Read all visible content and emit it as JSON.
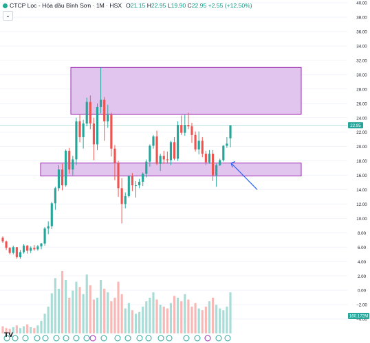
{
  "header": {
    "symbol_title": "CTCP Lọc - Hóa dầu Bình Sơn · 1M · HSX",
    "o_label": "O",
    "o_value": "21.15",
    "h_label": "H",
    "h_value": "22.95",
    "l_label": "L",
    "l_value": "19.90",
    "c_label": "C",
    "c_value": "22.95",
    "change": "+2.55 (+12.50%)",
    "collapse_glyph": "⌄"
  },
  "logo_text": "TV",
  "colors": {
    "up": "#26a69a",
    "down": "#ef5350",
    "vol_up": "#a8dcd6",
    "vol_down": "#f8b8b6",
    "zone_fill": "#e1c5ee",
    "zone_stroke": "#9c27b0",
    "arrow": "#2962ff",
    "price_tag": "#26a69a",
    "volume_tag": "#26a69a",
    "price_line": "#b2dfdb"
  },
  "price_tag_label": "22.95",
  "volume_tag_label": "160.172M",
  "chart_data": {
    "type": "candlestick",
    "y_axis": {
      "min": -6,
      "max": 40,
      "ticks": [
        "40.00",
        "38.00",
        "36.00",
        "34.00",
        "32.00",
        "30.00",
        "28.00",
        "26.00",
        "24.00",
        "22.00",
        "20.00",
        "18.00",
        "16.00",
        "14.00",
        "12.00",
        "10.00",
        "8.00",
        "6.00",
        "4.00",
        "2.00",
        "0.00",
        "−2.00",
        "−4.00"
      ]
    },
    "candles": [
      [
        7.3,
        7.5,
        6.6,
        6.8
      ],
      [
        6.8,
        6.9,
        5.6,
        5.9
      ],
      [
        5.9,
        6.0,
        5.0,
        5.2
      ],
      [
        5.2,
        6.2,
        5.0,
        6.0
      ],
      [
        6.0,
        6.0,
        4.4,
        4.6
      ],
      [
        4.6,
        5.6,
        4.4,
        5.3
      ],
      [
        5.3,
        6.4,
        5.1,
        6.2
      ],
      [
        6.2,
        6.3,
        5.1,
        5.5
      ],
      [
        5.5,
        6.1,
        5.2,
        5.9
      ],
      [
        5.9,
        6.3,
        5.5,
        5.7
      ],
      [
        5.7,
        6.3,
        5.5,
        6.1
      ],
      [
        6.1,
        6.6,
        5.7,
        6.5
      ],
      [
        6.5,
        8.8,
        6.2,
        8.6
      ],
      [
        8.6,
        9.6,
        7.8,
        8.9
      ],
      [
        8.9,
        12.3,
        8.5,
        12.1
      ],
      [
        12.1,
        14.4,
        11.2,
        14.2
      ],
      [
        14.2,
        17.4,
        13.8,
        16.8
      ],
      [
        16.8,
        17.6,
        13.9,
        14.6
      ],
      [
        14.6,
        19.6,
        14.4,
        19.4
      ],
      [
        19.4,
        19.8,
        16.2,
        16.8
      ],
      [
        16.8,
        18.7,
        16.0,
        18.2
      ],
      [
        18.2,
        24.0,
        17.4,
        23.5
      ],
      [
        23.5,
        24.4,
        20.6,
        21.3
      ],
      [
        21.3,
        23.7,
        19.7,
        23.2
      ],
      [
        23.2,
        26.8,
        22.8,
        26.2
      ],
      [
        26.2,
        27.1,
        22.4,
        23.2
      ],
      [
        23.2,
        24.0,
        18.1,
        20.3
      ],
      [
        20.3,
        26.0,
        19.5,
        25.5
      ],
      [
        25.5,
        31.0,
        24.6,
        26.5
      ],
      [
        26.5,
        26.9,
        20.8,
        23.5
      ],
      [
        23.5,
        25.8,
        22.6,
        24.4
      ],
      [
        24.4,
        24.7,
        18.6,
        19.7
      ],
      [
        19.7,
        20.2,
        15.3,
        17.7
      ],
      [
        17.7,
        18.0,
        13.0,
        14.2
      ],
      [
        14.2,
        15.6,
        9.3,
        12.0
      ],
      [
        12.0,
        13.6,
        11.4,
        13.1
      ],
      [
        13.1,
        16.0,
        12.9,
        15.9
      ],
      [
        15.9,
        16.3,
        13.8,
        14.6
      ],
      [
        14.6,
        15.2,
        12.9,
        14.6
      ],
      [
        14.6,
        15.5,
        14.2,
        15.1
      ],
      [
        15.1,
        16.4,
        14.5,
        16.2
      ],
      [
        16.2,
        18.2,
        15.7,
        17.9
      ],
      [
        17.9,
        20.3,
        17.2,
        20.1
      ],
      [
        20.1,
        21.6,
        19.7,
        21.4
      ],
      [
        21.4,
        22.2,
        17.4,
        17.6
      ],
      [
        17.6,
        19.0,
        16.6,
        18.7
      ],
      [
        18.7,
        19.4,
        17.6,
        18.2
      ],
      [
        18.2,
        19.3,
        17.6,
        18.1
      ],
      [
        18.1,
        20.8,
        17.4,
        20.6
      ],
      [
        20.6,
        21.3,
        18.1,
        18.3
      ],
      [
        18.3,
        23.5,
        18.0,
        23.0
      ],
      [
        23.0,
        24.3,
        21.6,
        21.9
      ],
      [
        21.9,
        24.4,
        21.5,
        23.0
      ],
      [
        23.0,
        24.7,
        22.4,
        22.8
      ],
      [
        22.8,
        23.3,
        20.5,
        21.6
      ],
      [
        21.6,
        22.1,
        19.3,
        19.6
      ],
      [
        19.6,
        22.1,
        18.9,
        20.8
      ],
      [
        20.8,
        21.3,
        18.5,
        19.0
      ],
      [
        19.0,
        19.4,
        17.4,
        17.8
      ],
      [
        17.8,
        19.5,
        17.6,
        19.0
      ],
      [
        19.0,
        19.5,
        15.2,
        16.0
      ],
      [
        16.0,
        17.6,
        14.4,
        17.4
      ],
      [
        17.4,
        18.3,
        17.3,
        18.1
      ],
      [
        18.1,
        20.2,
        17.9,
        20.1
      ],
      [
        20.1,
        21.3,
        19.8,
        20.4
      ],
      [
        21.15,
        22.95,
        19.9,
        22.95
      ]
    ],
    "volume_note": "relative volume bars, green = up month, red = down month"
  }
}
